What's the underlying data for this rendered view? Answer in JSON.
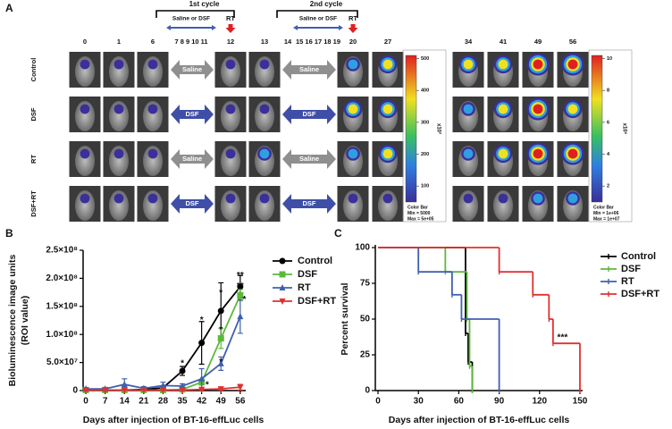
{
  "panel_a": {
    "label": "A",
    "cycles": [
      {
        "title": "1st cycle",
        "treatment": "Saline or DSF",
        "rt": "RT"
      },
      {
        "title": "2nd cycle",
        "treatment": "Saline or DSF",
        "rt": "RT"
      }
    ],
    "days": [
      "0",
      "1",
      "6",
      "7 8 9 10 11",
      "12",
      "13",
      "14",
      "15 16 17 18 19",
      "20",
      "27",
      "34",
      "41",
      "49",
      "56"
    ],
    "rows": [
      {
        "label": "Control",
        "treatments": [
          "Saline",
          "Saline"
        ],
        "arrow_color": "#8f8f8f"
      },
      {
        "label": "DSF",
        "treatments": [
          "DSF",
          "DSF"
        ],
        "arrow_color": "#3f4fa8"
      },
      {
        "label": "RT",
        "treatments": [
          "Saline",
          "Saline"
        ],
        "arrow_color": "#8f8f8f"
      },
      {
        "label": "DSF+RT",
        "treatments": [
          "DSF",
          "DSF"
        ],
        "arrow_color": "#3f4fa8"
      }
    ],
    "color_bars": [
      {
        "ticks": [
          100,
          200,
          300,
          400,
          500
        ],
        "lim": [
          50,
          510
        ],
        "unit": "x10³",
        "title": "Color Bar",
        "min": "Min = 5000",
        "max": "Max = 5e+05"
      },
      {
        "ticks": [
          2,
          4,
          6,
          8,
          10
        ],
        "lim": [
          1,
          10.2
        ],
        "unit": "x10⁶",
        "title": "Color Bar",
        "min": "Min = 1e+06",
        "max": "Max = 1e+07"
      }
    ]
  },
  "chart_data": [
    {
      "type": "line",
      "label": "B",
      "xlabel": "Days after injection of BT-16-effLuc cells",
      "ylabel": [
        "Bioluminescence image units",
        "(ROI value)"
      ],
      "x": [
        0,
        7,
        14,
        21,
        28,
        35,
        42,
        49,
        56
      ],
      "xlim": [
        -1,
        58
      ],
      "xticks": [
        0,
        7,
        14,
        21,
        28,
        35,
        42,
        49,
        56
      ],
      "ylim": [
        0,
        250000000
      ],
      "yticks": [
        0,
        {
          "value": 50000000,
          "label": "5.0×10⁷"
        },
        {
          "value": 100000000,
          "label": "1.0×10⁸"
        },
        {
          "value": 150000000,
          "label": "1.5×10⁸"
        },
        {
          "value": 200000000,
          "label": "2.0×10⁸"
        },
        {
          "value": 250000000,
          "label": "2.5×10⁸"
        }
      ],
      "series": [
        {
          "name": "Control",
          "color": "#000000",
          "marker": "circle",
          "values": [
            1000000,
            1000000,
            1000000,
            2000000,
            5000000,
            35000000,
            85000000,
            142000000,
            185000000
          ],
          "errors": [
            500000,
            500000,
            1000000,
            1000000,
            3000000,
            8000000,
            38000000,
            50000000,
            20000000
          ]
        },
        {
          "name": "DSF",
          "color": "#5cb83c",
          "marker": "square",
          "values": [
            1000000,
            1000000,
            1000000,
            1000000,
            1000000,
            2000000,
            15000000,
            93000000,
            170000000
          ],
          "errors": [
            500000,
            500000,
            500000,
            500000,
            500000,
            1000000,
            5000000,
            18000000,
            10000000
          ]
        },
        {
          "name": "RT",
          "color": "#3f5fb0",
          "marker": "triangle",
          "values": [
            3000000,
            3000000,
            11000000,
            4000000,
            9000000,
            8000000,
            21000000,
            48000000,
            132000000
          ],
          "errors": [
            2000000,
            2000000,
            10000000,
            3000000,
            6000000,
            4000000,
            18000000,
            12000000,
            30000000
          ]
        },
        {
          "name": "DSF+RT",
          "color": "#e03030",
          "marker": "triangle-down",
          "values": [
            1000000,
            1000000,
            1000000,
            1000000,
            1000000,
            1000000,
            2000000,
            3000000,
            6000000
          ],
          "errors": [
            500000,
            500000,
            500000,
            500000,
            500000,
            500000,
            1000000,
            2000000,
            5000000
          ]
        }
      ],
      "annotations": [
        {
          "x": 35,
          "y": 48000000,
          "text": "*"
        },
        {
          "x": 42,
          "y": 125000000,
          "text": "*"
        },
        {
          "x": 44,
          "y": 10000000,
          "text": "*"
        },
        {
          "x": 49,
          "y": 174000000,
          "text": "*"
        },
        {
          "x": 49,
          "y": 108000000,
          "text": "*"
        },
        {
          "x": 49,
          "y": 50000000,
          "text": "*"
        },
        {
          "x": 56,
          "y": 205000000,
          "text": "**"
        },
        {
          "x": 56,
          "y": 186000000,
          "text": "**"
        },
        {
          "x": 57.5,
          "y": 162000000,
          "text": "*"
        }
      ]
    },
    {
      "type": "step",
      "label": "C",
      "xlabel": "Days after injection of BT-16-effLuc cells",
      "ylabel": "Percent survival",
      "xlim": [
        -2,
        152
      ],
      "xticks": [
        0,
        30,
        60,
        90,
        120,
        150
      ],
      "ylim": [
        0,
        100
      ],
      "yticks": [
        0,
        25,
        50,
        75,
        100
      ],
      "series": [
        {
          "name": "Control",
          "color": "#000000",
          "x": [
            0,
            65,
            67,
            70
          ],
          "values": [
            100,
            40,
            20,
            0
          ]
        },
        {
          "name": "DSF",
          "color": "#5cb83c",
          "x": [
            0,
            50,
            66,
            68,
            70
          ],
          "values": [
            100,
            83,
            50,
            17,
            0
          ]
        },
        {
          "name": "RT",
          "color": "#3f5fb0",
          "x": [
            0,
            30,
            55,
            62,
            90
          ],
          "values": [
            100,
            83,
            67,
            50,
            0
          ]
        },
        {
          "name": "DSF+RT",
          "color": "#e03030",
          "x": [
            0,
            90,
            115,
            127,
            130,
            150
          ],
          "values": [
            100,
            83,
            67,
            50,
            33,
            0
          ]
        }
      ],
      "annotations": [
        {
          "x": 137,
          "y": 37,
          "text": "***"
        }
      ]
    }
  ]
}
